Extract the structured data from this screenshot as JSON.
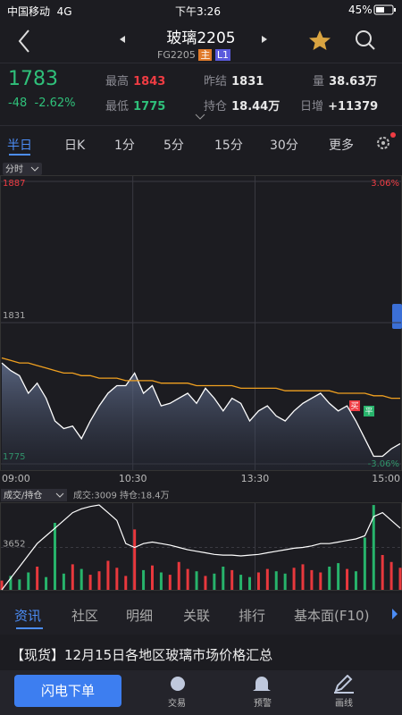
{
  "status_bar": {
    "carrier": "中国移动",
    "network": "4G",
    "time": "下午3:26",
    "battery": "45%"
  },
  "nav": {
    "title": "玻璃2205",
    "code": "FG2205",
    "badge_main": "主",
    "badge_level": "L1"
  },
  "quote": {
    "last": 1783,
    "change": -48,
    "change_pct": "-2.62%",
    "fields": [
      {
        "label": "最高",
        "value": 1843
      },
      {
        "label": "昨结",
        "value": 1831
      },
      {
        "label": "量",
        "value": "38.63万"
      },
      {
        "label": "最低",
        "value": 1775
      },
      {
        "label": "持仓",
        "value": "18.44万"
      },
      {
        "label": "日增",
        "value": "+11379"
      }
    ]
  },
  "period_tabs": [
    "半日",
    "日K",
    "1分",
    "5分",
    "15分",
    "30分",
    "更多"
  ],
  "chart_data": [
    {
      "type": "line",
      "title": "分时",
      "annotations": [
        "买",
        "平"
      ],
      "x": [
        0,
        5,
        10,
        15,
        20,
        25,
        30,
        35,
        40,
        45,
        50,
        55,
        60,
        65,
        70,
        75,
        80,
        85,
        90,
        95,
        100,
        105,
        110,
        115,
        120,
        125,
        130,
        135,
        140,
        145,
        150,
        155,
        160,
        165,
        170,
        175,
        180,
        185,
        190,
        195,
        200,
        205,
        210,
        215,
        220,
        225
      ],
      "xlim": [
        0,
        225
      ],
      "xticks": [
        {
          "value": 0,
          "label": "09:00"
        },
        {
          "value": 74,
          "label": "10:30"
        },
        {
          "value": 143,
          "label": "13:30"
        },
        {
          "value": 225,
          "label": "15:00"
        }
      ],
      "ylim": [
        1775,
        1887
      ],
      "yticks": [
        1887,
        1831,
        1775
      ],
      "y2lim": [
        -3.06,
        3.06
      ],
      "y2ticks": [
        {
          "value": 3.06,
          "label": "3.06%"
        },
        {
          "value": -3.06,
          "label": "-3.06%"
        }
      ],
      "series": [
        {
          "color": "#ffffff",
          "values": [
            1815,
            1812,
            1810,
            1803,
            1807,
            1801,
            1792,
            1789,
            1790,
            1785,
            1792,
            1798,
            1803,
            1806,
            1806,
            1811,
            1803,
            1806,
            1798,
            1799,
            1801,
            1803,
            1799,
            1805,
            1801,
            1796,
            1801,
            1799,
            1792,
            1796,
            1798,
            1794,
            1792,
            1796,
            1799,
            1801,
            1803,
            1799,
            1796,
            1798,
            1792,
            1785,
            1778,
            1778,
            1781,
            1783
          ]
        },
        {
          "color": "#f0a020",
          "values": [
            1817,
            1816,
            1815,
            1815,
            1814,
            1813,
            1812,
            1811,
            1811,
            1810,
            1810,
            1809,
            1809,
            1809,
            1808,
            1808,
            1808,
            1808,
            1807,
            1807,
            1807,
            1807,
            1806,
            1806,
            1806,
            1806,
            1806,
            1805,
            1805,
            1805,
            1805,
            1805,
            1804,
            1804,
            1804,
            1804,
            1804,
            1804,
            1803,
            1803,
            1803,
            1803,
            1802,
            1802,
            1801,
            1801
          ]
        }
      ]
    },
    {
      "type": "bar",
      "title": "成交/持仓",
      "annotation": "成交:3009 持仓:18.4万",
      "up_color": "#e8383d",
      "down_color": "#27b36b",
      "x": [
        0,
        5,
        10,
        15,
        20,
        25,
        30,
        35,
        40,
        45,
        50,
        55,
        60,
        65,
        70,
        75,
        80,
        85,
        90,
        95,
        100,
        105,
        110,
        115,
        120,
        125,
        130,
        135,
        140,
        145,
        150,
        155,
        160,
        165,
        170,
        175,
        180,
        185,
        190,
        195,
        200,
        205,
        210,
        215,
        220,
        225
      ],
      "xlim": [
        0,
        225
      ],
      "ylim": [
        0,
        7304
      ],
      "yticks": [
        3652
      ],
      "y2lim": [
        17.6,
        18.7
      ],
      "series": [
        {
          "values": [
            800,
            1200,
            900,
            1500,
            2000,
            1100,
            5766,
            1400,
            2200,
            1800,
            1300,
            1600,
            2500,
            1900,
            1200,
            5200,
            1700,
            2100,
            1500,
            1300,
            2400,
            1800,
            1600,
            1200,
            1400,
            2000,
            1700,
            1300,
            1100,
            1500,
            1800,
            1600,
            1400,
            1900,
            2200,
            1700,
            1500,
            2000,
            2300,
            1800,
            1600,
            4500,
            7300,
            3000,
            2400,
            1900
          ]
        },
        {
          "axis": "y2",
          "color": "#ffffff",
          "values": [
            17.6,
            17.75,
            17.9,
            18.05,
            18.2,
            18.3,
            18.4,
            18.5,
            18.6,
            18.65,
            18.68,
            18.7,
            18.6,
            18.5,
            18.2,
            18.15,
            18.2,
            18.22,
            18.2,
            18.18,
            18.15,
            18.12,
            18.1,
            18.08,
            18.06,
            18.05,
            18.05,
            18.04,
            18.05,
            18.06,
            18.08,
            18.1,
            18.12,
            18.14,
            18.15,
            18.17,
            18.2,
            18.2,
            18.22,
            18.24,
            18.26,
            18.3,
            18.55,
            18.6,
            18.5,
            18.4
          ]
        }
      ]
    }
  ],
  "info_tabs": [
    "资讯",
    "社区",
    "明细",
    "关联",
    "排行",
    "基本面(F10)"
  ],
  "news": "【现货】12月15日各地区玻璃市场价格汇总",
  "bottom_bar": {
    "button": "闪电下单",
    "items": [
      "交易",
      "预警",
      "画线"
    ]
  }
}
